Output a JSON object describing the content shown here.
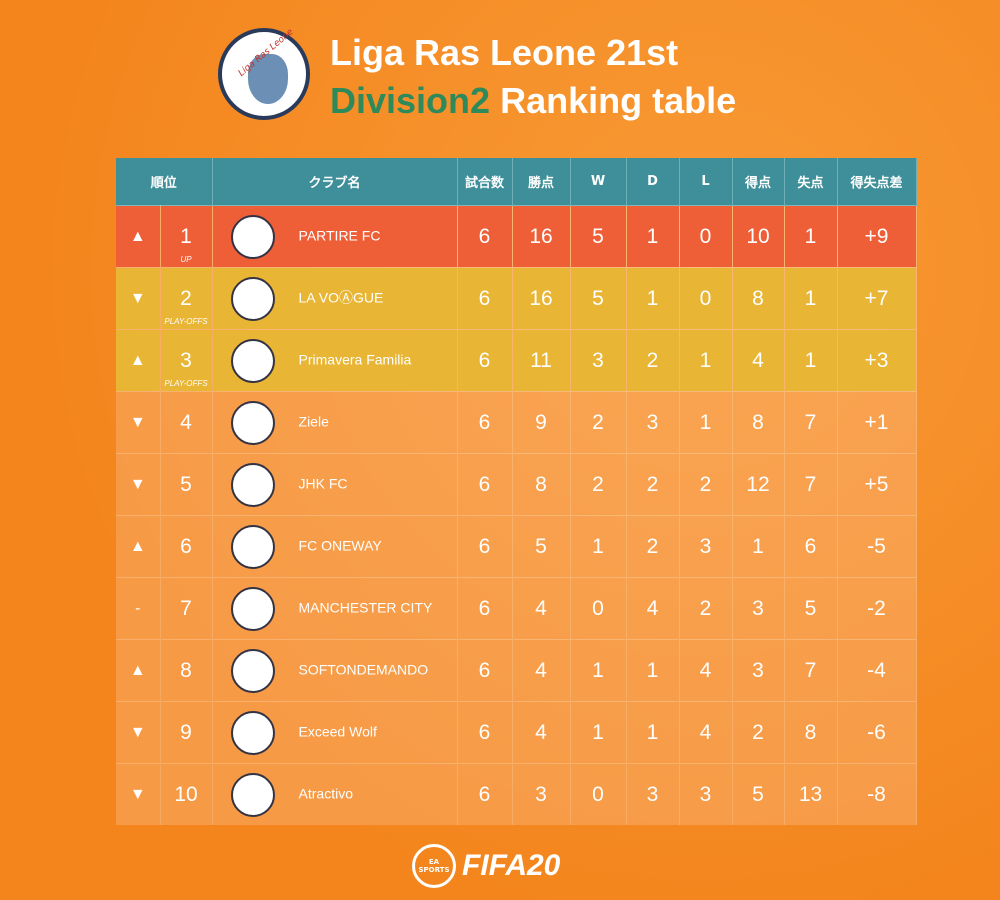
{
  "header": {
    "logo_text": "Liga Ras Leone",
    "title_line1": "Liga Ras Leone 21st",
    "title_accent": "Division2",
    "title_rest": "Ranking table"
  },
  "table": {
    "columns": [
      "順位",
      "クラブ名",
      "試合数",
      "勝点",
      "W",
      "D",
      "L",
      "得点",
      "失点",
      "得失点差"
    ],
    "rows": [
      {
        "trend": "▲",
        "rank": "1",
        "note": "UP",
        "club": "PARTIRE FC",
        "stats": [
          "6",
          "16",
          "5",
          "1",
          "0",
          "10",
          "1",
          "+9"
        ]
      },
      {
        "trend": "▼",
        "rank": "2",
        "note": "PLAY-OFFS",
        "club": "LA VOⒶGUE",
        "stats": [
          "6",
          "16",
          "5",
          "1",
          "0",
          "8",
          "1",
          "+7"
        ]
      },
      {
        "trend": "▲",
        "rank": "3",
        "note": "PLAY-OFFS",
        "club": "Primavera Familia",
        "stats": [
          "6",
          "11",
          "3",
          "2",
          "1",
          "4",
          "1",
          "+3"
        ]
      },
      {
        "trend": "▼",
        "rank": "4",
        "club": "Ziele",
        "stats": [
          "6",
          "9",
          "2",
          "3",
          "1",
          "8",
          "7",
          "+1"
        ]
      },
      {
        "trend": "▼",
        "rank": "5",
        "club": "JHK FC",
        "stats": [
          "6",
          "8",
          "2",
          "2",
          "2",
          "12",
          "7",
          "+5"
        ]
      },
      {
        "trend": "▲",
        "rank": "6",
        "club": "FC ONEWAY",
        "stats": [
          "6",
          "5",
          "1",
          "2",
          "3",
          "1",
          "6",
          "-5"
        ]
      },
      {
        "trend": "-",
        "rank": "7",
        "club": "MANCHESTER CITY",
        "stats": [
          "6",
          "4",
          "0",
          "4",
          "2",
          "3",
          "5",
          "-2"
        ]
      },
      {
        "trend": "▲",
        "rank": "8",
        "club": "SOFTONDEMANDO",
        "stats": [
          "6",
          "4",
          "1",
          "1",
          "4",
          "3",
          "7",
          "-4"
        ]
      },
      {
        "trend": "▼",
        "rank": "9",
        "club": "Exceed Wolf",
        "stats": [
          "6",
          "4",
          "1",
          "1",
          "4",
          "2",
          "8",
          "-6"
        ]
      },
      {
        "trend": "▼",
        "rank": "10",
        "club": "Atractivo",
        "stats": [
          "6",
          "3",
          "0",
          "3",
          "3",
          "5",
          "13",
          "-8"
        ]
      }
    ]
  },
  "footer": {
    "brand": "EA SPORTS",
    "game": "FIFA20"
  }
}
